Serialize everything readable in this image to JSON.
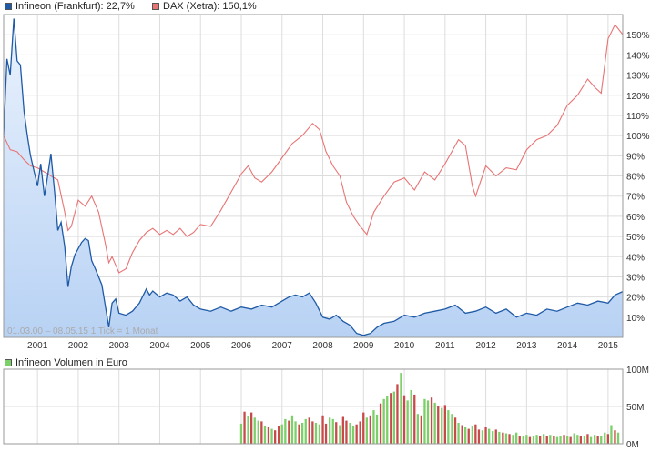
{
  "legend": {
    "infineon": "Infineon (Frankfurt): 22,7%",
    "dax": "DAX (Xetra): 150,1%",
    "volume": "Infineon Volumen in Euro"
  },
  "colors": {
    "infineon": "#1f5aa6",
    "infineon_fill": "#b8d2f4",
    "dax": "#e87474",
    "vol_up": "#7dcf6a",
    "vol_down": "#c84a4a",
    "grid": "#dddddd"
  },
  "info_text": "01.03.00 – 08.05.15   1 Tick = 1 Monat",
  "chart_data": [
    {
      "type": "line",
      "x_tick_labels": [
        "2001",
        "2002",
        "2003",
        "2004",
        "2005",
        "2006",
        "2007",
        "2008",
        "2009",
        "2010",
        "2011",
        "2012",
        "2013",
        "2014",
        "2015"
      ],
      "y_tick_labels": [
        "10%",
        "20%",
        "30%",
        "40%",
        "50%",
        "60%",
        "70%",
        "80%",
        "90%",
        "100%",
        "110%",
        "120%",
        "130%",
        "140%",
        "150%"
      ],
      "ylim": [
        0,
        160
      ],
      "xlim": [
        2000.17,
        2015.36
      ],
      "grid": true,
      "series": [
        {
          "name": "Infineon (Frankfurt): 22,7%",
          "x": [
            2000.17,
            2000.25,
            2000.33,
            2000.42,
            2000.5,
            2000.58,
            2000.67,
            2000.75,
            2000.83,
            2000.92,
            2001.0,
            2001.08,
            2001.17,
            2001.25,
            2001.33,
            2001.42,
            2001.5,
            2001.58,
            2001.67,
            2001.75,
            2001.83,
            2001.92,
            2002.0,
            2002.08,
            2002.17,
            2002.25,
            2002.33,
            2002.42,
            2002.5,
            2002.58,
            2002.67,
            2002.75,
            2002.83,
            2002.92,
            2003.0,
            2003.17,
            2003.33,
            2003.5,
            2003.67,
            2003.75,
            2003.83,
            2004.0,
            2004.17,
            2004.33,
            2004.5,
            2004.67,
            2004.83,
            2005.0,
            2005.25,
            2005.5,
            2005.75,
            2006.0,
            2006.25,
            2006.5,
            2006.75,
            2007.0,
            2007.17,
            2007.33,
            2007.5,
            2007.67,
            2007.83,
            2008.0,
            2008.17,
            2008.33,
            2008.5,
            2008.67,
            2008.83,
            2009.0,
            2009.17,
            2009.33,
            2009.5,
            2009.75,
            2010.0,
            2010.25,
            2010.5,
            2010.75,
            2011.0,
            2011.25,
            2011.5,
            2011.75,
            2012.0,
            2012.25,
            2012.5,
            2012.75,
            2013.0,
            2013.25,
            2013.5,
            2013.75,
            2014.0,
            2014.25,
            2014.5,
            2014.75,
            2015.0,
            2015.17,
            2015.36
          ],
          "values": [
            100,
            138,
            130,
            158,
            137,
            135,
            112,
            100,
            90,
            82,
            75,
            86,
            70,
            80,
            91,
            72,
            53,
            57,
            45,
            25,
            35,
            41,
            44,
            47,
            49,
            48,
            38,
            34,
            30,
            26,
            15,
            5,
            17,
            19,
            12,
            11,
            13,
            17,
            24,
            21,
            23,
            20,
            22,
            21,
            18,
            20,
            16,
            14,
            13,
            15,
            13,
            15,
            14,
            16,
            15,
            18,
            20,
            21,
            20,
            22,
            17,
            10,
            9,
            11,
            8,
            6,
            2,
            1,
            2,
            5,
            7,
            8,
            11,
            10,
            12,
            13,
            14,
            16,
            12,
            13,
            15,
            12,
            14,
            10,
            12,
            11,
            14,
            13,
            15,
            17,
            16,
            18,
            17,
            21,
            22.7
          ]
        },
        {
          "name": "DAX (Xetra): 150,1%",
          "x": [
            2000.17,
            2000.33,
            2000.5,
            2000.67,
            2000.83,
            2001.0,
            2001.17,
            2001.33,
            2001.5,
            2001.67,
            2001.75,
            2001.83,
            2002.0,
            2002.17,
            2002.33,
            2002.5,
            2002.67,
            2002.75,
            2002.83,
            2003.0,
            2003.17,
            2003.33,
            2003.5,
            2003.67,
            2003.83,
            2004.0,
            2004.17,
            2004.33,
            2004.5,
            2004.67,
            2004.83,
            2005.0,
            2005.25,
            2005.5,
            2005.75,
            2006.0,
            2006.17,
            2006.33,
            2006.5,
            2006.75,
            2007.0,
            2007.25,
            2007.5,
            2007.75,
            2007.92,
            2008.08,
            2008.25,
            2008.42,
            2008.58,
            2008.75,
            2008.92,
            2009.08,
            2009.25,
            2009.5,
            2009.75,
            2010.0,
            2010.25,
            2010.5,
            2010.75,
            2011.0,
            2011.33,
            2011.5,
            2011.67,
            2011.75,
            2012.0,
            2012.25,
            2012.5,
            2012.75,
            2013.0,
            2013.25,
            2013.5,
            2013.75,
            2014.0,
            2014.25,
            2014.5,
            2014.67,
            2014.83,
            2015.0,
            2015.17,
            2015.36
          ],
          "values": [
            100,
            93,
            92,
            88,
            85,
            84,
            82,
            80,
            78,
            62,
            53,
            55,
            68,
            65,
            70,
            62,
            46,
            37,
            40,
            32,
            34,
            42,
            48,
            52,
            54,
            51,
            53,
            51,
            54,
            50,
            52,
            56,
            55,
            63,
            72,
            81,
            85,
            79,
            77,
            82,
            89,
            96,
            100,
            106,
            103,
            92,
            85,
            80,
            67,
            60,
            55,
            51,
            62,
            70,
            77,
            79,
            73,
            82,
            78,
            86,
            98,
            95,
            75,
            70,
            85,
            80,
            84,
            83,
            93,
            98,
            100,
            105,
            115,
            120,
            128,
            124,
            121,
            148,
            155,
            150.1
          ]
        }
      ]
    },
    {
      "type": "bar",
      "title": "Infineon Volumen in Euro",
      "y_tick_labels": [
        "100M",
        "50M",
        "0M"
      ],
      "ylim": [
        0,
        100
      ],
      "ylabel_unit": "M",
      "x": [
        2006.0,
        2006.08,
        2006.17,
        2006.25,
        2006.33,
        2006.42,
        2006.5,
        2006.58,
        2006.67,
        2006.75,
        2006.83,
        2006.92,
        2007.0,
        2007.08,
        2007.17,
        2007.25,
        2007.33,
        2007.42,
        2007.5,
        2007.58,
        2007.67,
        2007.75,
        2007.83,
        2007.92,
        2008.0,
        2008.08,
        2008.17,
        2008.25,
        2008.33,
        2008.42,
        2008.5,
        2008.58,
        2008.67,
        2008.75,
        2008.83,
        2008.92,
        2009.0,
        2009.08,
        2009.17,
        2009.25,
        2009.33,
        2009.42,
        2009.5,
        2009.58,
        2009.67,
        2009.75,
        2009.83,
        2009.92,
        2010.0,
        2010.08,
        2010.17,
        2010.25,
        2010.33,
        2010.42,
        2010.5,
        2010.58,
        2010.67,
        2010.75,
        2010.83,
        2010.92,
        2011.0,
        2011.08,
        2011.17,
        2011.25,
        2011.33,
        2011.42,
        2011.5,
        2011.58,
        2011.67,
        2011.75,
        2011.83,
        2011.92,
        2012.0,
        2012.08,
        2012.17,
        2012.25,
        2012.33,
        2012.42,
        2012.5,
        2012.58,
        2012.67,
        2012.75,
        2012.83,
        2012.92,
        2013.0,
        2013.08,
        2013.17,
        2013.25,
        2013.33,
        2013.42,
        2013.5,
        2013.58,
        2013.67,
        2013.75,
        2013.83,
        2013.92,
        2014.0,
        2014.08,
        2014.17,
        2014.25,
        2014.33,
        2014.42,
        2014.5,
        2014.58,
        2014.67,
        2014.75,
        2014.83,
        2014.92,
        2015.0,
        2015.08,
        2015.17,
        2015.25
      ],
      "values": [
        27,
        43,
        37,
        42,
        35,
        31,
        30,
        24,
        22,
        20,
        18,
        24,
        26,
        33,
        31,
        38,
        30,
        26,
        28,
        33,
        35,
        30,
        28,
        26,
        38,
        27,
        35,
        33,
        29,
        25,
        36,
        31,
        28,
        24,
        26,
        30,
        42,
        35,
        38,
        45,
        39,
        54,
        60,
        64,
        68,
        70,
        80,
        95,
        65,
        58,
        72,
        66,
        40,
        38,
        60,
        58,
        62,
        55,
        50,
        48,
        52,
        45,
        40,
        35,
        28,
        25,
        22,
        20,
        24,
        26,
        19,
        18,
        22,
        20,
        17,
        19,
        16,
        15,
        14,
        13,
        12,
        15,
        11,
        10,
        12,
        9,
        11,
        12,
        10,
        13,
        11,
        12,
        10,
        9,
        11,
        12,
        10,
        9,
        14,
        12,
        11,
        10,
        13,
        9,
        12,
        10,
        11,
        15,
        13,
        25,
        18,
        15
      ],
      "directions": [
        "u",
        "d",
        "u",
        "d",
        "u",
        "u",
        "d",
        "u",
        "d",
        "u",
        "d",
        "d",
        "u",
        "u",
        "d",
        "u",
        "u",
        "d",
        "u",
        "u",
        "d",
        "d",
        "u",
        "u",
        "d",
        "d",
        "u",
        "u",
        "d",
        "u",
        "d",
        "d",
        "u",
        "u",
        "d",
        "d",
        "d",
        "u",
        "d",
        "u",
        "u",
        "d",
        "u",
        "u",
        "d",
        "u",
        "d",
        "u",
        "d",
        "u",
        "u",
        "d",
        "u",
        "d",
        "u",
        "u",
        "d",
        "u",
        "d",
        "u",
        "d",
        "u",
        "u",
        "d",
        "u",
        "d",
        "u",
        "d",
        "u",
        "d",
        "d",
        "u",
        "d",
        "u",
        "u",
        "d",
        "u",
        "d",
        "u",
        "d",
        "u",
        "u",
        "d",
        "u",
        "u",
        "d",
        "u",
        "u",
        "d",
        "u",
        "d",
        "u",
        "d",
        "u",
        "u",
        "d",
        "u",
        "d",
        "u",
        "u",
        "d",
        "u",
        "d",
        "u",
        "u",
        "d",
        "u",
        "u",
        "d",
        "u",
        "d",
        "u"
      ]
    }
  ]
}
